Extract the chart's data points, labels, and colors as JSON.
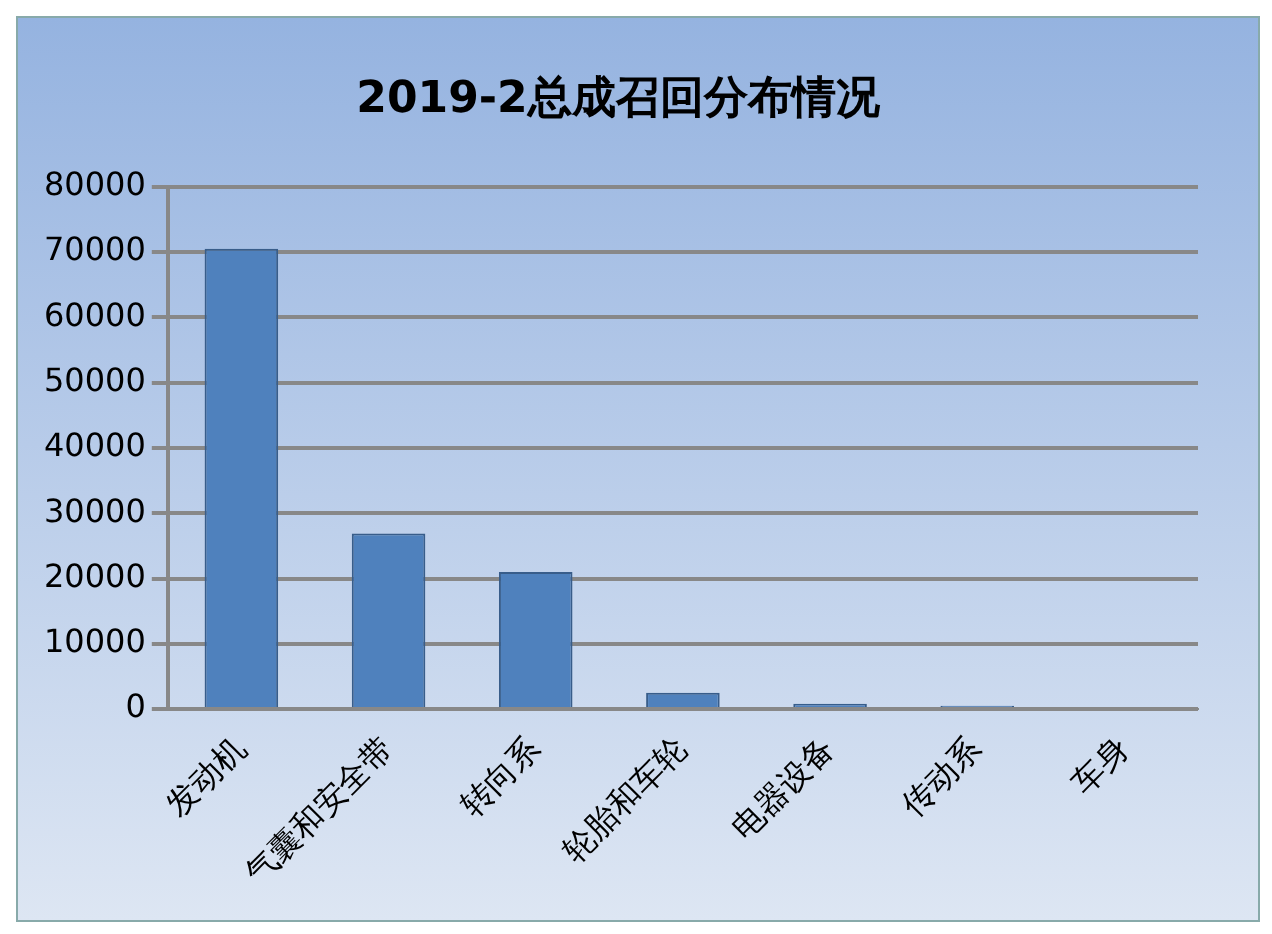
{
  "chart_data": {
    "type": "bar",
    "title": "2019-2总成召回分布情况",
    "categories": [
      "发动机",
      "气囊和安全带",
      "转向系",
      "轮胎和车轮",
      "电器设备",
      "传动系",
      "车身"
    ],
    "values": [
      70500,
      26900,
      21000,
      2500,
      800,
      500,
      300
    ],
    "color": "#4f81bd",
    "ylim": [
      0,
      80000
    ],
    "yticks": [
      0,
      10000,
      20000,
      30000,
      40000,
      50000,
      60000,
      70000,
      80000
    ],
    "grid": "y"
  }
}
